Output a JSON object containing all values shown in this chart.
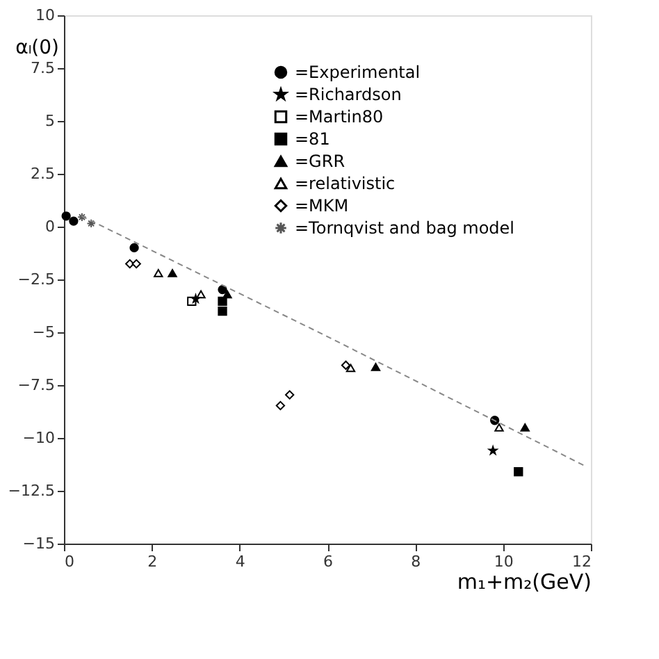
{
  "chart_data": {
    "type": "scatter",
    "xlabel": "m₁+m₂(GeV)",
    "ylabel": "αₗ(0)",
    "xlim": [
      0,
      12
    ],
    "ylim": [
      -15,
      10
    ],
    "xticks": [
      0,
      2,
      4,
      6,
      8,
      10,
      12
    ],
    "yticks": [
      -15,
      -12.5,
      -10,
      -7.5,
      -5,
      -2.5,
      0,
      2.5,
      5,
      7.5,
      10
    ],
    "grid": false,
    "legend": "top",
    "line_style": "dashed",
    "series": [
      {
        "name": "=Experimental",
        "color": "#000000",
        "marker": "circle",
        "x": [
          0.05,
          0.22,
          1.6,
          3.61,
          9.81
        ],
        "values": [
          0.5,
          0.26,
          -1.0,
          -2.98,
          -9.17
        ]
      },
      {
        "name": "=Richardson",
        "color": "#000000",
        "marker": "star",
        "x": [
          3.0,
          9.77
        ],
        "values": [
          -3.42,
          -10.6
        ]
      },
      {
        "name": "=Martin80",
        "color": "#000000",
        "marker": "square_open",
        "x": [
          2.91
        ],
        "values": [
          -3.53
        ]
      },
      {
        "name": "=81",
        "color": "#000000",
        "marker": "square",
        "x": [
          3.61,
          3.61,
          10.35
        ],
        "values": [
          -3.53,
          -4.0,
          -11.6
        ]
      },
      {
        "name": "=GRR",
        "color": "#000000",
        "marker": "triangle",
        "x": [
          2.47,
          3.72,
          7.1,
          10.5
        ],
        "values": [
          -2.2,
          -3.2,
          -6.64,
          -9.5
        ]
      },
      {
        "name": "=relativistic",
        "color": "#000000",
        "marker": "triangle_open",
        "x": [
          2.15,
          3.12,
          6.53,
          9.91
        ],
        "values": [
          -2.2,
          -3.2,
          -6.69,
          -9.5
        ]
      },
      {
        "name": "=MKM",
        "color": "#000000",
        "marker": "diamond_open",
        "x": [
          1.5,
          1.65,
          4.93,
          5.14,
          6.42
        ],
        "values": [
          -1.76,
          -1.76,
          -8.47,
          -7.96,
          -6.56
        ]
      },
      {
        "name": "=Tornqvist and bag model",
        "color": "#555555",
        "marker": "cross",
        "x": [
          0.41,
          0.62
        ],
        "values": [
          0.45,
          0.15
        ]
      },
      {
        "type": "line",
        "color": "#888888",
        "x": [
          0.4,
          5.9,
          11.9
        ],
        "values": [
          0.5,
          -5.1,
          -11.36
        ]
      }
    ]
  }
}
